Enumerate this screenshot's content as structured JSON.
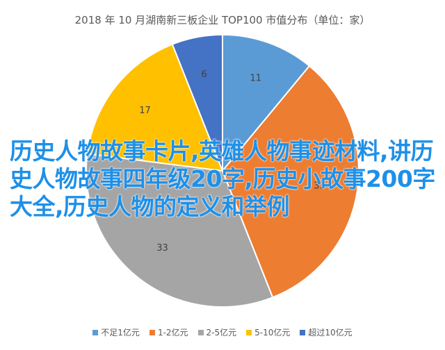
{
  "chart_data": {
    "type": "pie",
    "title": "2018 年 10 月湖南新三板企业 TOP100 市值分布（单位：家）",
    "categories": [
      "不足1亿元",
      "1-2亿元",
      "2-5亿元",
      "5-10亿元",
      "超过10亿元"
    ],
    "values": [
      11,
      33,
      33,
      17,
      6
    ],
    "colors": [
      "#5b9bd5",
      "#ed7d31",
      "#a5a5a5",
      "#ffc000",
      "#4472c4"
    ],
    "legend_position": "bottom"
  },
  "overlay_text": "历史人物故事卡片,英雄人物事迹材料,讲历史人物故事四年级20字,历史小故事200字大全,历史人物的定义和举例"
}
